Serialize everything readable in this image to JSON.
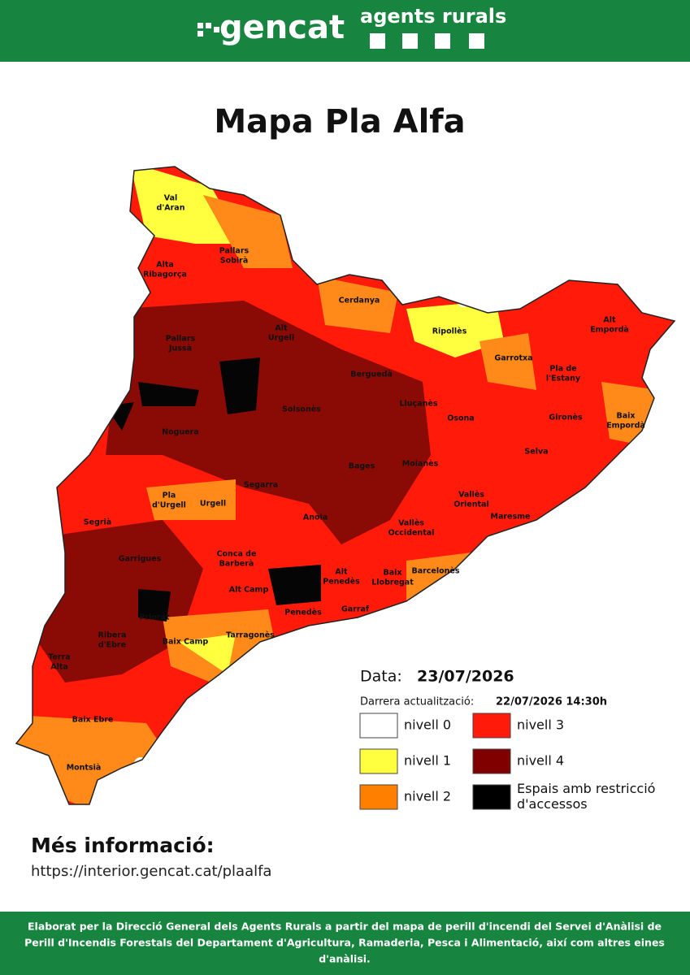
{
  "header": {
    "brand": "gencat",
    "unit": "agents rurals"
  },
  "title": "Mapa Pla Alfa",
  "map": {
    "labels": [
      [
        "Val",
        "d'Aran"
      ],
      [
        "Pallars",
        "Sobirà"
      ],
      [
        "Alta",
        "Ribagorça"
      ],
      [
        "Cerdanya"
      ],
      [
        "Ripollès"
      ],
      [
        "Alt",
        "Empordà"
      ],
      [
        "Pallars",
        "Jussà"
      ],
      [
        "Alt",
        "Urgell"
      ],
      [
        "Garrotxa"
      ],
      [
        "Pla de",
        "l'Estany"
      ],
      [
        "Berguedà"
      ],
      [
        "Lluçanès"
      ],
      [
        "Solsonès"
      ],
      [
        "Gironès"
      ],
      [
        "Baix",
        "Empordà"
      ],
      [
        "Noguera"
      ],
      [
        "Osona"
      ],
      [
        "Selva"
      ],
      [
        "Moianès"
      ],
      [
        "Bages"
      ],
      [
        "Segarra"
      ],
      [
        "Vallès",
        "Oriental"
      ],
      [
        "Pla",
        "d'Urgell"
      ],
      [
        "Urgell"
      ],
      [
        "Segrià"
      ],
      [
        "Anoia"
      ],
      [
        "Maresme"
      ],
      [
        "Vallès",
        "Occidental"
      ],
      [
        "Garrigues"
      ],
      [
        "Conca de",
        "Barberà"
      ],
      [
        "Alt",
        "Penedès"
      ],
      [
        "Baix",
        "Llobregat"
      ],
      [
        "Barcelonès"
      ],
      [
        "Alt Camp"
      ],
      [
        "Penedès"
      ],
      [
        "Garraf"
      ],
      [
        "Priorat"
      ],
      [
        "Ribera",
        "d'Ebre"
      ],
      [
        "Tarragonès"
      ],
      [
        "Baix Camp"
      ],
      [
        "Terra",
        "Alta"
      ],
      [
        "Baix Ebre"
      ],
      [
        "Montsià"
      ]
    ]
  },
  "info": {
    "date_label": "Data:",
    "date": "23/07/2026",
    "update_label": "Darrera actualització:",
    "update": "22/07/2026 14:30h"
  },
  "legend": [
    {
      "label": [
        "nivell 0"
      ],
      "color": "#ffffff"
    },
    {
      "label": [
        "nivell 3"
      ],
      "color": "#ff1a0a"
    },
    {
      "label": [
        "nivell 1"
      ],
      "color": "#ffff40"
    },
    {
      "label": [
        "nivell 4"
      ],
      "color": "#800000"
    },
    {
      "label": [
        "nivell 2"
      ],
      "color": "#ff8000"
    },
    {
      "label": [
        "Espais amb restricció",
        "d'accessos"
      ],
      "color": "#000000"
    }
  ],
  "more": {
    "heading": "Més informació:",
    "url": "https://interior.gencat.cat/plaalfa"
  },
  "footer": [
    "Elaborat per la Direcció General dels Agents Rurals a partir del mapa de perill d'incendi del Servei d'Anàlisi de",
    "Perill d'Incendis Forestals del Departament d'Agricultura, Ramaderia, Pesca i Alimentació, així com altres eines",
    "d'anàlisi."
  ]
}
